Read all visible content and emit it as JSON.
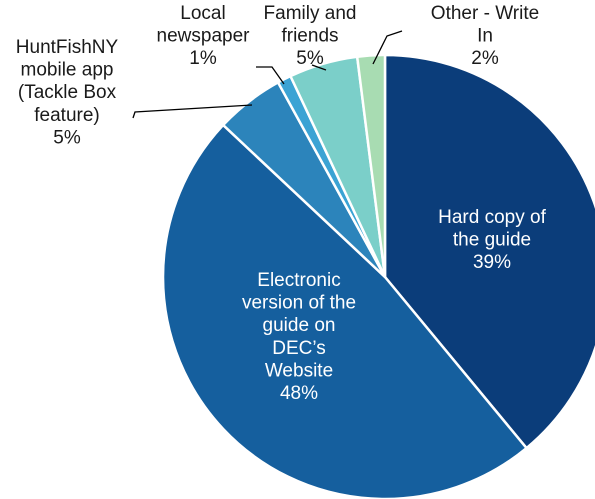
{
  "chart_data": {
    "type": "pie",
    "title": "",
    "slices": [
      {
        "label": "Hard copy of the guide",
        "value": 39,
        "value_label": "39%",
        "color": "#0b3d7a",
        "lines": [
          "Hard copy of",
          "the guide"
        ]
      },
      {
        "label": "Electronic version of the guide on DEC’s Website",
        "value": 48,
        "value_label": "48%",
        "color": "#155f9e",
        "lines": [
          "Electronic",
          "version of the",
          "guide on",
          "DEC’s",
          "Website"
        ]
      },
      {
        "label": "HuntFishNY mobile app (Tackle Box feature)",
        "value": 5,
        "value_label": "5%",
        "color": "#2c84bb",
        "lines": [
          "HuntFishNY",
          "mobile app",
          "(Tackle Box",
          "feature)"
        ]
      },
      {
        "label": "Local newspaper",
        "value": 1,
        "value_label": "1%",
        "color": "#3ba3d4",
        "lines": [
          "Local",
          "newspaper"
        ]
      },
      {
        "label": "Family and friends",
        "value": 5,
        "value_label": "5%",
        "color": "#7bcfc9",
        "lines": [
          "Family and",
          "friends"
        ]
      },
      {
        "label": "Other - Write In",
        "value": 2,
        "value_label": "2%",
        "color": "#a8dcb2",
        "lines": [
          "Other - Write",
          "In"
        ]
      }
    ]
  }
}
